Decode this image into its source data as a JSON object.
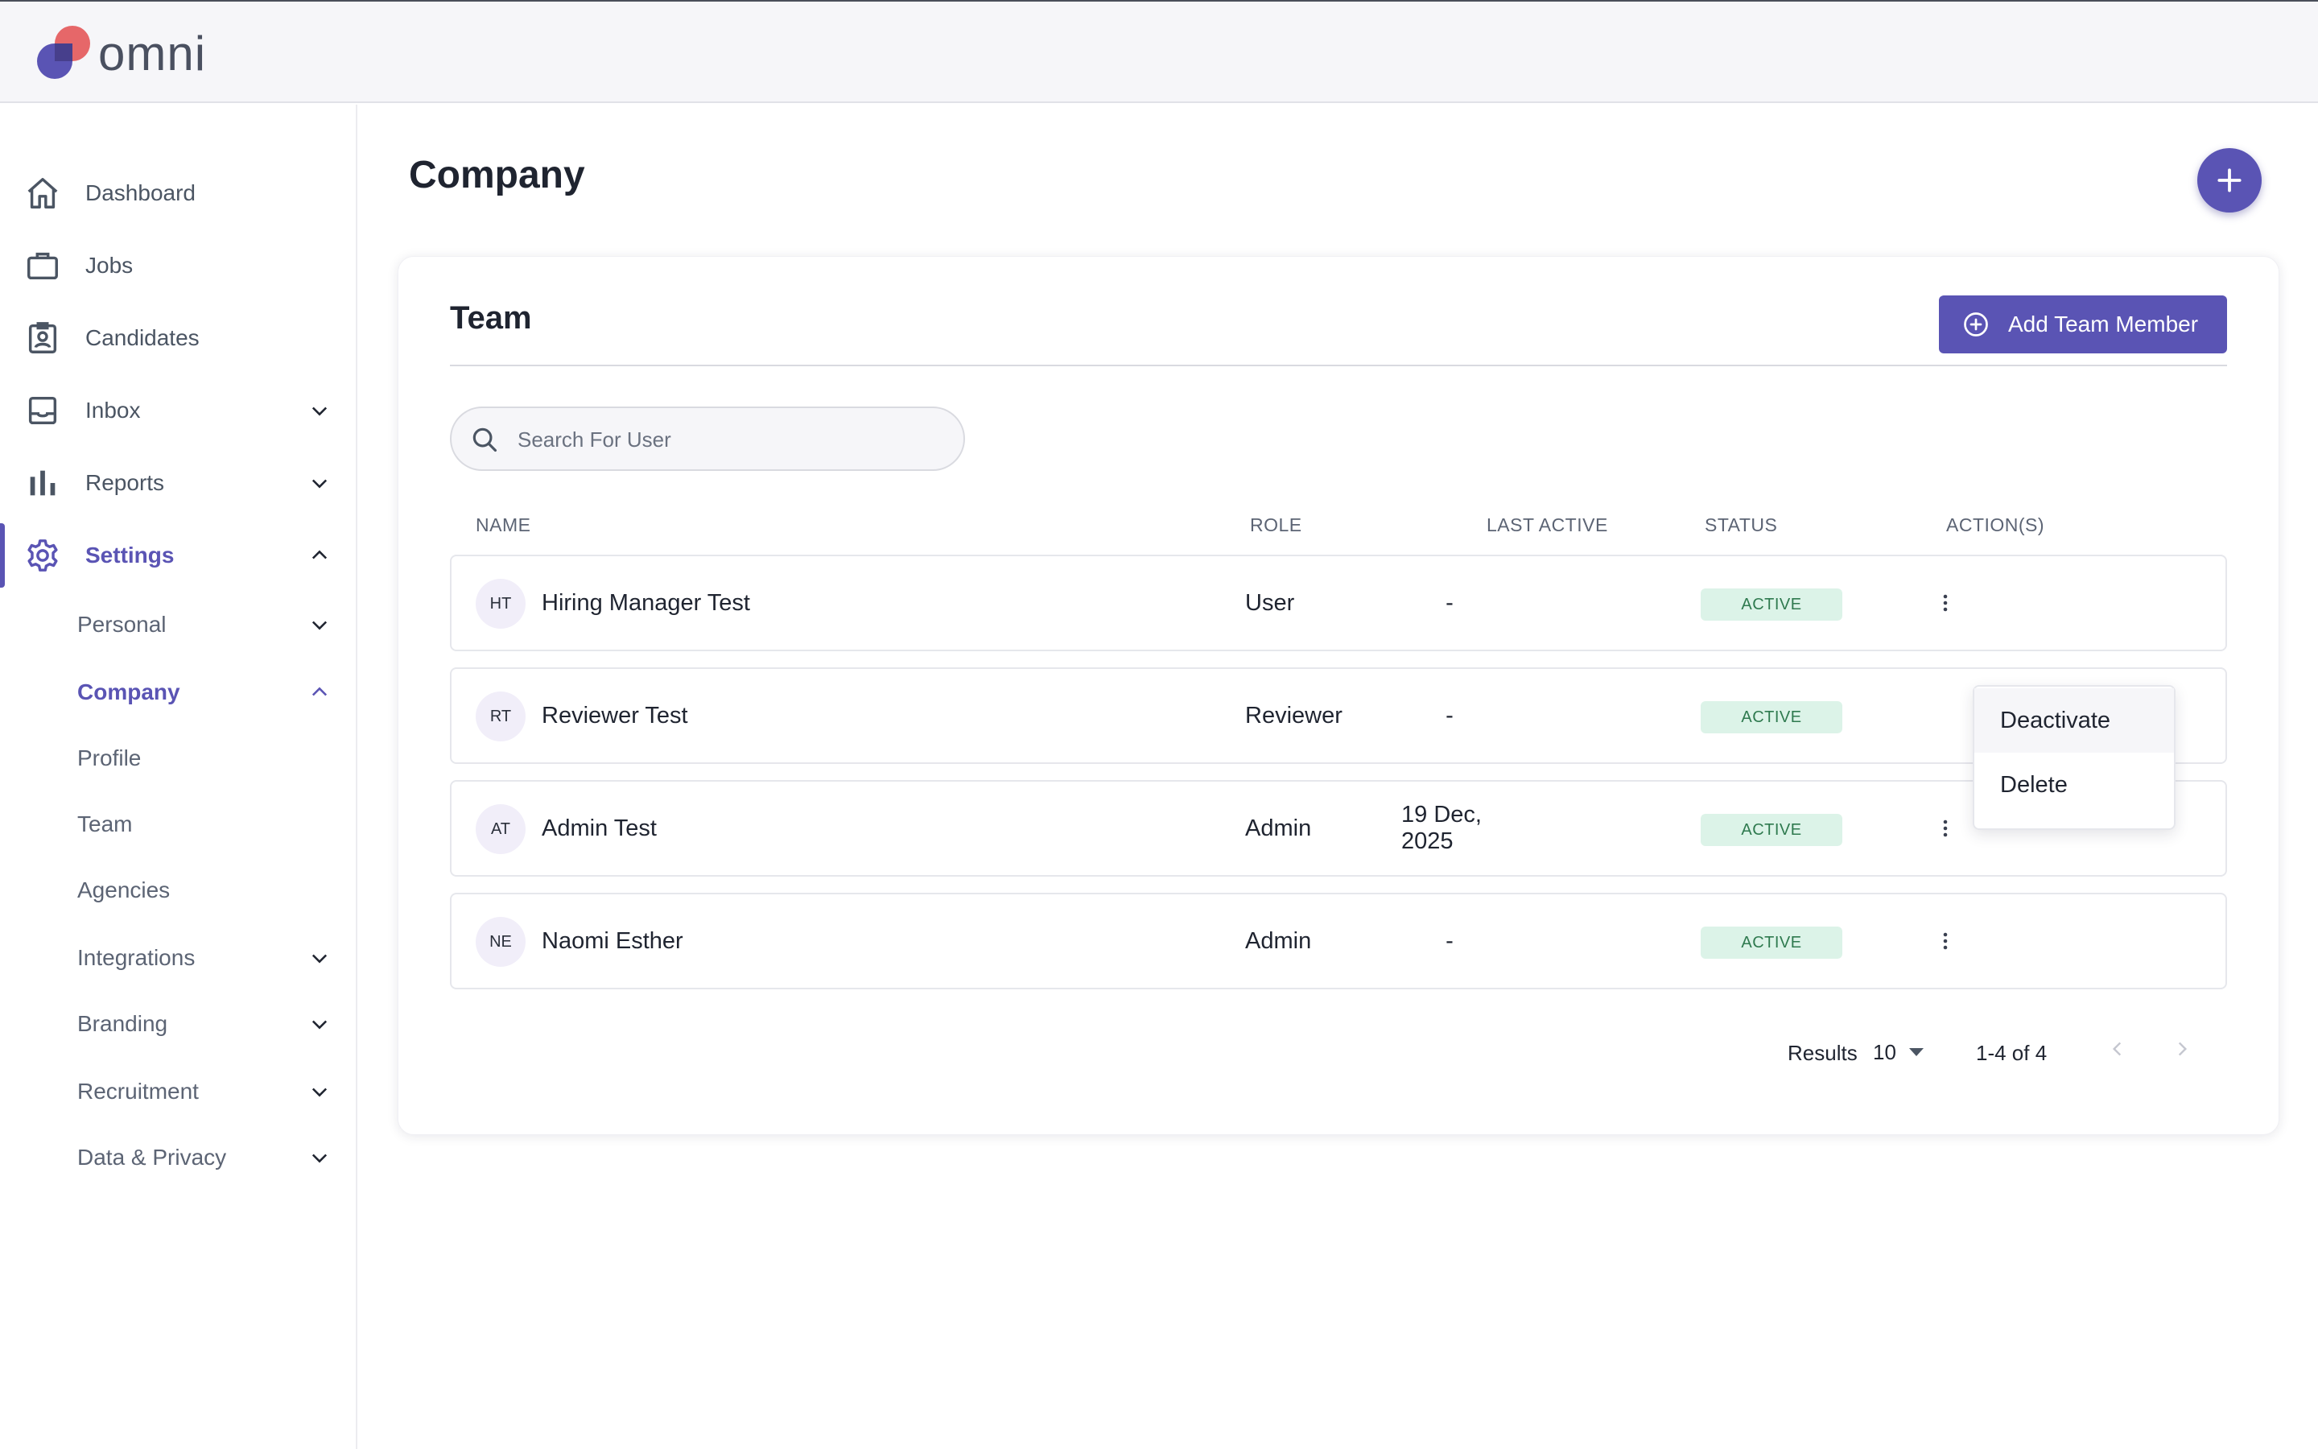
{
  "app": {
    "logo_text": "omni"
  },
  "colors": {
    "accent": "#5a54b4",
    "logo_red": "#ef6b6b",
    "status_bg": "#dcf3e8",
    "status_text": "#2f7a4f"
  },
  "sidebar": {
    "items": [
      {
        "label": "Dashboard",
        "icon": "home-icon"
      },
      {
        "label": "Jobs",
        "icon": "briefcase-icon"
      },
      {
        "label": "Candidates",
        "icon": "id-badge-icon"
      },
      {
        "label": "Inbox",
        "icon": "inbox-icon",
        "expandable": true
      },
      {
        "label": "Reports",
        "icon": "bar-chart-icon",
        "expandable": true
      },
      {
        "label": "Settings",
        "icon": "gear-icon",
        "expandable": true,
        "expanded": true,
        "active": true
      }
    ],
    "settings_children": [
      {
        "label": "Personal",
        "expandable": true
      },
      {
        "label": "Company",
        "expandable": true,
        "expanded": true,
        "active": true
      },
      {
        "label": "Profile"
      },
      {
        "label": "Team"
      },
      {
        "label": "Agencies"
      },
      {
        "label": "Integrations",
        "expandable": true
      },
      {
        "label": "Branding",
        "expandable": true
      },
      {
        "label": "Recruitment",
        "expandable": true
      },
      {
        "label": "Data & Privacy",
        "expandable": true
      }
    ]
  },
  "main": {
    "title": "Company",
    "fab_icon": "plus-icon"
  },
  "team": {
    "title": "Team",
    "add_button_label": "Add Team Member",
    "search_placeholder": "Search For User",
    "columns": [
      "NAME",
      "ROLE",
      "LAST ACTIVE",
      "STATUS",
      "ACTION(S)"
    ],
    "rows": [
      {
        "initials": "HT",
        "name": "Hiring Manager Test",
        "role": "User",
        "last_active": "-",
        "status": "ACTIVE"
      },
      {
        "initials": "RT",
        "name": "Reviewer Test",
        "role": "Reviewer",
        "last_active": "-",
        "status": "ACTIVE"
      },
      {
        "initials": "AT",
        "name": "Admin Test",
        "role": "Admin",
        "last_active": "19 Dec, 2025",
        "status": "ACTIVE"
      },
      {
        "initials": "NE",
        "name": "Naomi Esther",
        "role": "Admin",
        "last_active": "-",
        "status": "ACTIVE"
      }
    ],
    "action_menu": {
      "items": [
        "Deactivate",
        "Delete"
      ],
      "hovered": "Deactivate"
    },
    "pagination": {
      "results_label": "Results",
      "page_size": "10",
      "range": "1-4 of 4"
    }
  }
}
